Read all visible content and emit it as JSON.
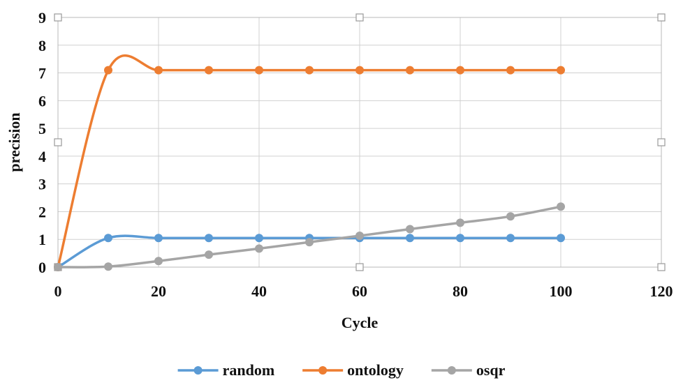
{
  "chart_data": {
    "type": "line",
    "title": "",
    "xlabel": "Cycle",
    "ylabel": "precision",
    "xlim": [
      0,
      120
    ],
    "ylim": [
      0,
      9
    ],
    "x_ticks": [
      "0",
      "20",
      "40",
      "60",
      "80",
      "100",
      "120"
    ],
    "y_ticks": [
      "0",
      "1",
      "2",
      "3",
      "4",
      "5",
      "6",
      "7",
      "8",
      "9"
    ],
    "grid": true,
    "legend_position": "bottom",
    "smoothed": true,
    "series": [
      {
        "name": "random",
        "color": "#5b9bd5",
        "x": [
          0,
          10,
          20,
          30,
          40,
          50,
          60,
          70,
          80,
          90,
          100
        ],
        "y": [
          0,
          1.05,
          1.05,
          1.05,
          1.05,
          1.05,
          1.05,
          1.05,
          1.05,
          1.05,
          1.05
        ]
      },
      {
        "name": "ontology",
        "color": "#ed7d31",
        "x": [
          0,
          10,
          20,
          30,
          40,
          50,
          60,
          70,
          80,
          90,
          100
        ],
        "y": [
          0,
          7.1,
          7.1,
          7.1,
          7.1,
          7.1,
          7.1,
          7.1,
          7.1,
          7.1,
          7.1
        ]
      },
      {
        "name": "osqr",
        "color": "#a5a5a5",
        "x": [
          0,
          10,
          20,
          30,
          40,
          50,
          60,
          70,
          80,
          90,
          100
        ],
        "y": [
          0,
          0.02,
          0.22,
          0.45,
          0.67,
          0.9,
          1.13,
          1.37,
          1.6,
          1.83,
          2.18
        ]
      }
    ]
  }
}
